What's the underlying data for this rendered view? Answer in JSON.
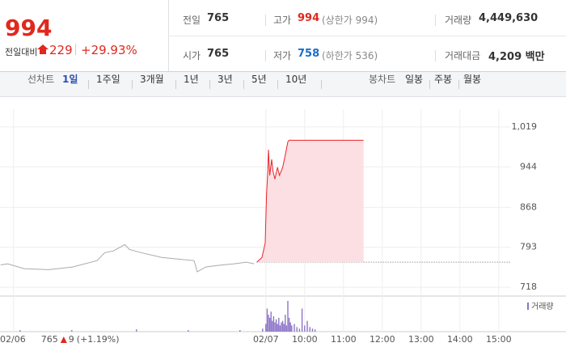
{
  "header": {
    "price": "994",
    "change_label": "전일대비",
    "change": "229",
    "change_pct": "+29.93%",
    "stats": [
      {
        "label": "전일",
        "value": "765"
      },
      {
        "label": "고가",
        "value": "994",
        "note": "(상한가 994)"
      },
      {
        "label": "거래량",
        "value": "4,449,630"
      },
      {
        "label": "시가",
        "value": "765"
      },
      {
        "label": "저가",
        "value": "758",
        "note": "(하한가 536)"
      },
      {
        "label": "거래대금",
        "value": "4,209 백만"
      }
    ]
  },
  "tabs": {
    "line_label": "선차트",
    "line": [
      "1일",
      "1주일",
      "3개월",
      "1년",
      "3년",
      "5년",
      "10년"
    ],
    "candle_label": "봉차트",
    "candle": [
      "일봉",
      "주봉",
      "월봉"
    ]
  },
  "chart_data": {
    "type": "line",
    "ylim": [
      703,
      1037
    ],
    "yticks": [
      718,
      793,
      868,
      944,
      {
        "value": 1019,
        "label": "1,019"
      }
    ],
    "xlim": [
      -411,
      379
    ],
    "xticks": [
      {
        "value": -390,
        "label": "02/06"
      },
      {
        "value": 0,
        "label": "02/07"
      },
      {
        "value": 60,
        "label": "10:00"
      },
      {
        "value": 120,
        "label": "11:00"
      },
      {
        "value": 180,
        "label": "12:00"
      },
      {
        "value": 240,
        "label": "13:00"
      },
      {
        "value": 300,
        "label": "14:00"
      },
      {
        "value": 360,
        "label": "15:00"
      }
    ],
    "grid": true,
    "baseline": 765,
    "prev_close": "765",
    "prev_change": "9",
    "prev_change_pct": "(+1.19%)",
    "series": [
      {
        "color": "#aaaaaa",
        "x": [
          -410,
          -399,
          -374,
          -336,
          -299,
          -261,
          -249,
          -236,
          -218,
          -211,
          -193,
          -161,
          -136,
          -111,
          -106,
          -93,
          -74,
          -49,
          -30,
          -18
        ],
        "values": [
          760,
          762,
          753,
          751,
          756,
          768,
          783,
          786,
          798,
          789,
          783,
          774,
          771,
          768,
          747,
          756,
          759,
          762,
          765,
          762
        ]
      },
      {
        "color": "#e8252b",
        "fill": "#fbdfe2",
        "x": [
          -14,
          -6,
          -1,
          1,
          3,
          4,
          6,
          9,
          11,
          14,
          18,
          21,
          26,
          30,
          34,
          36,
          41,
          151
        ],
        "values": [
          765,
          774,
          801,
          891,
          936,
          976,
          928,
          958,
          936,
          921,
          943,
          928,
          943,
          966,
          991,
          994,
          994,
          994
        ]
      }
    ],
    "volume": {
      "name": "거래량",
      "color": "#8c74c8",
      "x": [
        -380,
        -300,
        -200,
        -120,
        -40,
        -5,
        0,
        2,
        4,
        6,
        8,
        10,
        12,
        14,
        16,
        18,
        20,
        22,
        24,
        26,
        28,
        30,
        32,
        34,
        36,
        38,
        40,
        44,
        48,
        52,
        56,
        60,
        64,
        68,
        72,
        76
      ],
      "values": [
        2,
        2,
        3,
        2,
        2,
        4,
        10,
        30,
        22,
        18,
        26,
        14,
        20,
        12,
        16,
        10,
        18,
        8,
        12,
        14,
        10,
        22,
        8,
        40,
        18,
        12,
        8,
        10,
        6,
        4,
        30,
        8,
        14,
        6,
        4,
        3
      ]
    }
  }
}
